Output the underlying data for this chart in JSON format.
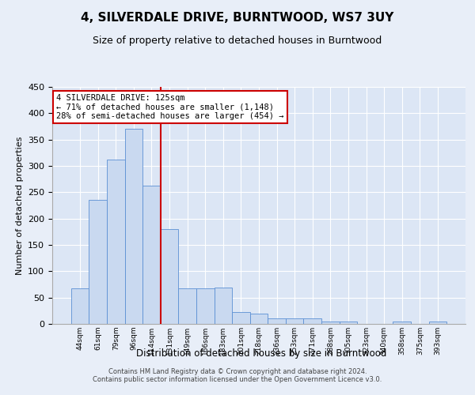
{
  "title": "4, SILVERDALE DRIVE, BURNTWOOD, WS7 3UY",
  "subtitle": "Size of property relative to detached houses in Burntwood",
  "xlabel": "Distribution of detached houses by size in Burntwood",
  "ylabel": "Number of detached properties",
  "bar_labels": [
    "44sqm",
    "61sqm",
    "79sqm",
    "96sqm",
    "114sqm",
    "131sqm",
    "149sqm",
    "166sqm",
    "183sqm",
    "201sqm",
    "218sqm",
    "236sqm",
    "253sqm",
    "271sqm",
    "288sqm",
    "305sqm",
    "323sqm",
    "340sqm",
    "358sqm",
    "375sqm",
    "393sqm"
  ],
  "bar_values": [
    67,
    235,
    312,
    370,
    263,
    180,
    67,
    67,
    69,
    22,
    19,
    10,
    10,
    10,
    4,
    4,
    0,
    0,
    4,
    0,
    4
  ],
  "bar_color": "#c9d9f0",
  "bar_edge_color": "#5b8fd4",
  "vline_color": "#cc0000",
  "annotation_line1": "4 SILVERDALE DRIVE: 125sqm",
  "annotation_line2": "← 71% of detached houses are smaller (1,148)",
  "annotation_line3": "28% of semi-detached houses are larger (454) →",
  "annotation_box_color": "#ffffff",
  "annotation_box_edge": "#cc0000",
  "footer_line1": "Contains HM Land Registry data © Crown copyright and database right 2024.",
  "footer_line2": "Contains public sector information licensed under the Open Government Licence v3.0.",
  "ylim": [
    0,
    450
  ],
  "background_color": "#dce6f5",
  "fig_background_color": "#e8eef8",
  "grid_color": "#ffffff"
}
